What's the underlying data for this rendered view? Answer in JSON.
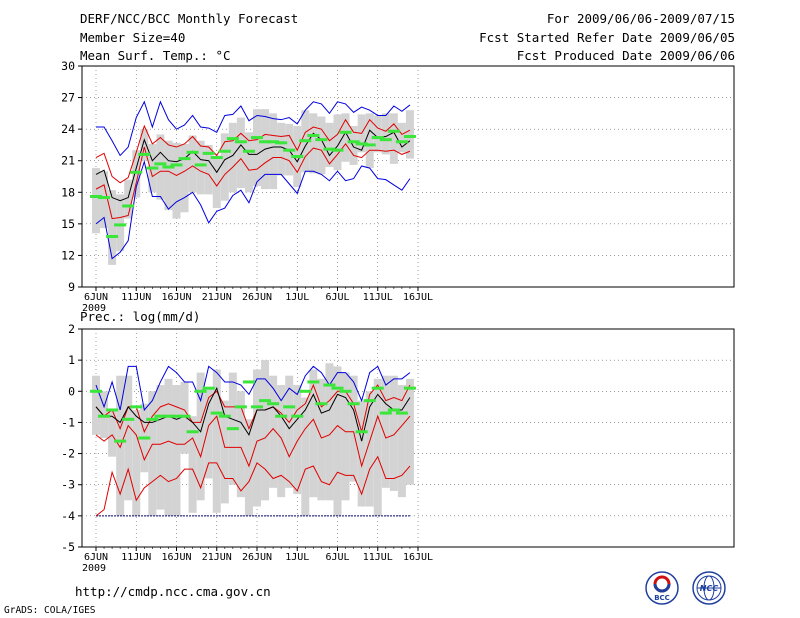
{
  "header": {
    "title": "DERF/NCC/BCC Monthly Forecast",
    "member_size": "Member Size=40",
    "variable": "Mean Surf. Temp.: °C",
    "period": "For 2009/06/06-2009/07/15",
    "fcst_start": "Fcst Started Refer Date 2009/06/05",
    "fcst_produced": "Fcst Produced Date 2009/06/06"
  },
  "footer": {
    "url": "http://cmdp.ncc.cma.gov.cn",
    "grads": "GrADS: COLA/IGES"
  },
  "logos": [
    {
      "label": "BCC",
      "color": "#1f3f9f"
    },
    {
      "label": "NCC",
      "color": "#1f3f9f"
    }
  ],
  "colors": {
    "box": "#d3d3d3",
    "mean_marker": "#39e639",
    "ensemble_mean": "#000000",
    "inner_band": "#e00000",
    "outer_band": "#0000e0",
    "grid": "#666666"
  },
  "chart_data": [
    {
      "type": "line",
      "panel": "temperature",
      "title": "Mean Surf. Temp.: °C",
      "x_start_label": "2009",
      "xlabel": "",
      "ylabel": "",
      "x": [
        0,
        1,
        2,
        3,
        4,
        5,
        6,
        7,
        8,
        9,
        10,
        11,
        12,
        13,
        14,
        15,
        16,
        17,
        18,
        19,
        20,
        21,
        22,
        23,
        24,
        25,
        26,
        27,
        28,
        29,
        30,
        31,
        32,
        33,
        34,
        35,
        36,
        37,
        38,
        39
      ],
      "x_ticks": [
        {
          "x": 0,
          "label": "6JUN"
        },
        {
          "x": 5,
          "label": "11JUN"
        },
        {
          "x": 10,
          "label": "16JUN"
        },
        {
          "x": 15,
          "label": "21JUN"
        },
        {
          "x": 20,
          "label": "26JUN"
        },
        {
          "x": 25,
          "label": "1JUL"
        },
        {
          "x": 30,
          "label": "6JUL"
        },
        {
          "x": 35,
          "label": "11JUL"
        },
        {
          "x": 40,
          "label": "16JUL"
        }
      ],
      "ylim": [
        9,
        30
      ],
      "y_ticks": [
        9,
        12,
        15,
        18,
        21,
        24,
        27,
        30
      ],
      "grid": true,
      "series": [
        {
          "name": "outer_upper",
          "values": [
            24.2,
            24.2,
            22.9,
            21.5,
            22.3,
            25.1,
            26.6,
            24.2,
            26.6,
            24.9,
            24.0,
            24.4,
            25.3,
            24.2,
            24.1,
            23.7,
            25.3,
            25.4,
            26.2,
            24.8,
            25.3,
            25.2,
            25.0,
            24.9,
            25.1,
            24.5,
            25.8,
            26.6,
            26.4,
            25.5,
            26.6,
            26.4,
            25.6,
            26.1,
            25.8,
            25.3,
            25.3,
            26.2,
            25.7,
            26.3
          ]
        },
        {
          "name": "inner_upper",
          "values": [
            21.3,
            21.7,
            19.5,
            18.9,
            19.4,
            21.8,
            24.3,
            22.6,
            23.2,
            22.5,
            22.3,
            22.6,
            23.3,
            22.4,
            22.3,
            21.5,
            22.8,
            22.9,
            23.6,
            22.9,
            23.0,
            23.5,
            23.4,
            23.3,
            23.4,
            22.0,
            23.7,
            24.2,
            24.0,
            22.9,
            23.5,
            24.9,
            23.7,
            23.6,
            24.9,
            24.1,
            23.8,
            24.5,
            23.5,
            23.9
          ]
        },
        {
          "name": "mean",
          "values": [
            19.7,
            20.1,
            17.5,
            17.2,
            17.5,
            20.3,
            23.0,
            21.0,
            21.8,
            21.0,
            20.9,
            21.2,
            21.9,
            21.1,
            21.0,
            19.9,
            21.1,
            21.5,
            22.5,
            21.6,
            21.6,
            22.1,
            22.3,
            22.3,
            22.0,
            20.9,
            22.4,
            23.6,
            23.0,
            21.5,
            22.4,
            23.7,
            22.3,
            22.0,
            23.9,
            23.2,
            23.3,
            23.7,
            22.3,
            22.9
          ]
        },
        {
          "name": "inner_lower",
          "values": [
            18.3,
            18.7,
            15.5,
            15.6,
            15.8,
            18.9,
            22.3,
            19.5,
            20.0,
            20.0,
            19.6,
            20.0,
            20.5,
            20.0,
            19.7,
            18.6,
            19.7,
            20.4,
            21.2,
            20.1,
            20.2,
            20.8,
            21.3,
            21.3,
            21.0,
            19.9,
            21.4,
            22.2,
            22.0,
            20.7,
            21.6,
            22.6,
            21.5,
            21.3,
            22.0,
            22.0,
            21.9,
            22.0,
            21.6,
            21.9
          ]
        },
        {
          "name": "outer_lower",
          "values": [
            15.0,
            15.6,
            11.7,
            12.3,
            13.4,
            18.5,
            20.9,
            17.6,
            17.6,
            16.4,
            17.1,
            17.5,
            18.0,
            16.8,
            15.1,
            16.2,
            16.5,
            17.7,
            18.2,
            17.0,
            19.0,
            19.7,
            19.7,
            19.7,
            18.8,
            17.9,
            20.0,
            20.0,
            19.7,
            19.1,
            20.0,
            19.1,
            19.3,
            20.5,
            20.3,
            19.3,
            19.2,
            18.7,
            18.2,
            19.3
          ]
        },
        {
          "name": "box_top",
          "values": [
            20.3,
            20.0,
            18.2,
            17.8,
            19.2,
            22.0,
            24.0,
            22.6,
            23.5,
            22.9,
            22.7,
            22.6,
            23.4,
            22.9,
            22.5,
            21.5,
            23.6,
            24.6,
            25.1,
            23.7,
            25.9,
            25.9,
            25.5,
            24.6,
            24.5,
            24.3,
            25.8,
            25.5,
            25.2,
            24.6,
            25.4,
            25.5,
            24.3,
            25.4,
            25.5,
            25.3,
            25.5,
            25.5,
            24.6,
            25.8
          ]
        },
        {
          "name": "box_bottom",
          "values": [
            14.1,
            14.6,
            11.1,
            12.4,
            15.5,
            17.5,
            21.0,
            18.0,
            17.3,
            16.3,
            15.5,
            16.1,
            18.0,
            17.8,
            17.8,
            16.5,
            17.2,
            18.0,
            18.4,
            18.0,
            18.6,
            18.3,
            18.3,
            19.6,
            19.6,
            18.5,
            19.9,
            19.8,
            19.7,
            20.4,
            20.1,
            20.9,
            20.6,
            21.8,
            20.3,
            21.8,
            21.6,
            20.7,
            21.8,
            21.2
          ]
        },
        {
          "name": "green_marker",
          "values": [
            17.6,
            17.5,
            13.8,
            14.9,
            16.7,
            19.9,
            21.6,
            20.3,
            20.7,
            20.4,
            20.6,
            21.2,
            21.8,
            20.6,
            21.7,
            21.3,
            21.9,
            23.1,
            22.8,
            21.9,
            23.2,
            22.8,
            22.8,
            22.7,
            22.0,
            21.4,
            22.9,
            23.4,
            23.0,
            22.1,
            22.0,
            23.7,
            22.8,
            22.6,
            22.5,
            23.2,
            23.0,
            23.8,
            22.8,
            23.3
          ]
        }
      ]
    },
    {
      "type": "line",
      "panel": "precipitation",
      "title": "Prec.: log(mm/d)",
      "x_start_label": "2009",
      "xlabel": "",
      "ylabel": "",
      "x": [
        0,
        1,
        2,
        3,
        4,
        5,
        6,
        7,
        8,
        9,
        10,
        11,
        12,
        13,
        14,
        15,
        16,
        17,
        18,
        19,
        20,
        21,
        22,
        23,
        24,
        25,
        26,
        27,
        28,
        29,
        30,
        31,
        32,
        33,
        34,
        35,
        36,
        37,
        38,
        39
      ],
      "x_ticks": [
        {
          "x": 0,
          "label": "6JUN"
        },
        {
          "x": 5,
          "label": "11JUN"
        },
        {
          "x": 10,
          "label": "16JUN"
        },
        {
          "x": 15,
          "label": "21JUN"
        },
        {
          "x": 20,
          "label": "26JUN"
        },
        {
          "x": 25,
          "label": "1JUL"
        },
        {
          "x": 30,
          "label": "6JUL"
        },
        {
          "x": 35,
          "label": "11JUL"
        },
        {
          "x": 40,
          "label": "16JUL"
        }
      ],
      "ylim": [
        -5,
        2
      ],
      "y_ticks": [
        -5,
        -4,
        -3,
        -2,
        -1,
        0,
        1,
        2
      ],
      "grid": true,
      "series": [
        {
          "name": "outer_upper",
          "values": [
            0.2,
            -0.5,
            0.3,
            -0.6,
            0.8,
            0.8,
            -0.6,
            -0.3,
            0.3,
            0.8,
            0.6,
            0.3,
            0.3,
            -0.3,
            0.8,
            0.6,
            0.3,
            0.3,
            0.2,
            -0.1,
            0.4,
            0.4,
            0.1,
            -0.3,
            0.1,
            -0.1,
            0.5,
            0.8,
            0.6,
            0.2,
            0.6,
            0.6,
            0.3,
            -0.3,
            0.6,
            0.8,
            0.2,
            0.4,
            0.4,
            0.6
          ]
        },
        {
          "name": "inner_upper",
          "values": [
            -0.5,
            -0.8,
            -0.6,
            -1.2,
            -0.5,
            -0.5,
            -1.3,
            -0.8,
            -0.5,
            -0.4,
            -0.5,
            -0.6,
            -1.0,
            -1.0,
            -0.2,
            0.0,
            -0.5,
            -0.5,
            -0.5,
            -1.2,
            -0.6,
            -0.6,
            -0.5,
            -0.7,
            -1.0,
            -0.6,
            -0.4,
            0.2,
            -0.5,
            -0.3,
            0.0,
            0.0,
            -0.4,
            -1.3,
            -0.1,
            0.2,
            -0.3,
            -0.2,
            -0.3,
            0.2
          ]
        },
        {
          "name": "mean",
          "values": [
            -0.5,
            -0.8,
            -0.8,
            -1.0,
            -0.5,
            -0.8,
            -1.0,
            -1.0,
            -0.9,
            -0.8,
            -0.9,
            -0.8,
            -1.0,
            -1.3,
            -0.4,
            0.1,
            -0.8,
            -0.9,
            -1.0,
            -1.4,
            -0.6,
            -0.6,
            -0.5,
            -0.8,
            -1.2,
            -0.9,
            -0.6,
            -0.1,
            -0.7,
            -0.6,
            -0.1,
            -0.2,
            -0.6,
            -1.6,
            -0.5,
            -0.1,
            -0.4,
            -0.6,
            -0.6,
            -0.2
          ]
        },
        {
          "name": "inner_lower",
          "values": [
            -1.4,
            -1.6,
            -1.4,
            -1.8,
            -1.1,
            -1.4,
            -2.2,
            -1.7,
            -1.7,
            -1.6,
            -1.7,
            -1.7,
            -1.5,
            -2.1,
            -1.1,
            -0.8,
            -1.8,
            -1.8,
            -1.8,
            -2.4,
            -1.6,
            -1.5,
            -1.2,
            -1.5,
            -2.1,
            -1.6,
            -1.2,
            -0.9,
            -1.5,
            -1.4,
            -1.1,
            -1.3,
            -1.3,
            -2.4,
            -1.6,
            -0.8,
            -1.5,
            -1.4,
            -1.1,
            -0.8
          ]
        },
        {
          "name": "outer_lower",
          "values": [
            -4.0,
            -3.8,
            -2.6,
            -3.3,
            -2.5,
            -3.5,
            -3.1,
            -2.9,
            -2.7,
            -2.9,
            -2.8,
            -2.5,
            -2.5,
            -3.1,
            -2.3,
            -2.3,
            -2.8,
            -2.8,
            -3.2,
            -2.9,
            -2.3,
            -2.5,
            -2.8,
            -2.7,
            -2.9,
            -3.2,
            -2.5,
            -2.4,
            -2.9,
            -3.0,
            -2.6,
            -2.7,
            -2.7,
            -3.3,
            -2.5,
            -2.1,
            -2.8,
            -2.8,
            -2.7,
            -2.4
          ]
        },
        {
          "name": "box_top",
          "values": [
            0.5,
            0.0,
            -0.6,
            0.5,
            0.5,
            -0.6,
            -0.4,
            0.0,
            0.2,
            0.4,
            0.2,
            0.3,
            -0.8,
            0.6,
            0.1,
            0.7,
            -0.3,
            0.6,
            0.0,
            -0.9,
            0.7,
            1.0,
            0.5,
            0.2,
            0.5,
            0.2,
            -0.2,
            0.7,
            0.4,
            0.9,
            0.8,
            0.6,
            0.5,
            -0.3,
            0.0,
            0.4,
            0.5,
            0.5,
            0.2,
            0.4
          ]
        },
        {
          "name": "box_bottom",
          "values": [
            -1.4,
            -1.5,
            -2.1,
            -4.0,
            -3.5,
            -4.0,
            -2.6,
            -4.0,
            -3.8,
            -4.0,
            -4.0,
            -2.0,
            -3.9,
            -3.5,
            -2.8,
            -3.9,
            -3.6,
            -3.0,
            -3.4,
            -4.0,
            -3.7,
            -3.5,
            -3.1,
            -3.4,
            -3.1,
            -3.3,
            -4.0,
            -3.4,
            -3.5,
            -3.5,
            -4.0,
            -3.5,
            -2.9,
            -3.7,
            -3.7,
            -4.0,
            -3.1,
            -3.2,
            -3.4,
            -3.0
          ]
        },
        {
          "name": "green_marker",
          "values": [
            0.0,
            -0.8,
            -0.6,
            -1.6,
            -0.9,
            -0.5,
            -1.5,
            -0.9,
            -0.8,
            -0.8,
            -0.8,
            -0.8,
            -1.3,
            0.0,
            0.1,
            -0.7,
            -0.8,
            -1.2,
            -0.5,
            0.3,
            -0.5,
            -0.3,
            -0.4,
            -0.8,
            -0.5,
            -0.8,
            0.0,
            0.3,
            -0.4,
            0.2,
            0.1,
            0.0,
            -0.4,
            -1.3,
            -0.3,
            0.1,
            -0.7,
            -0.6,
            -0.7,
            0.1
          ]
        }
      ]
    }
  ]
}
